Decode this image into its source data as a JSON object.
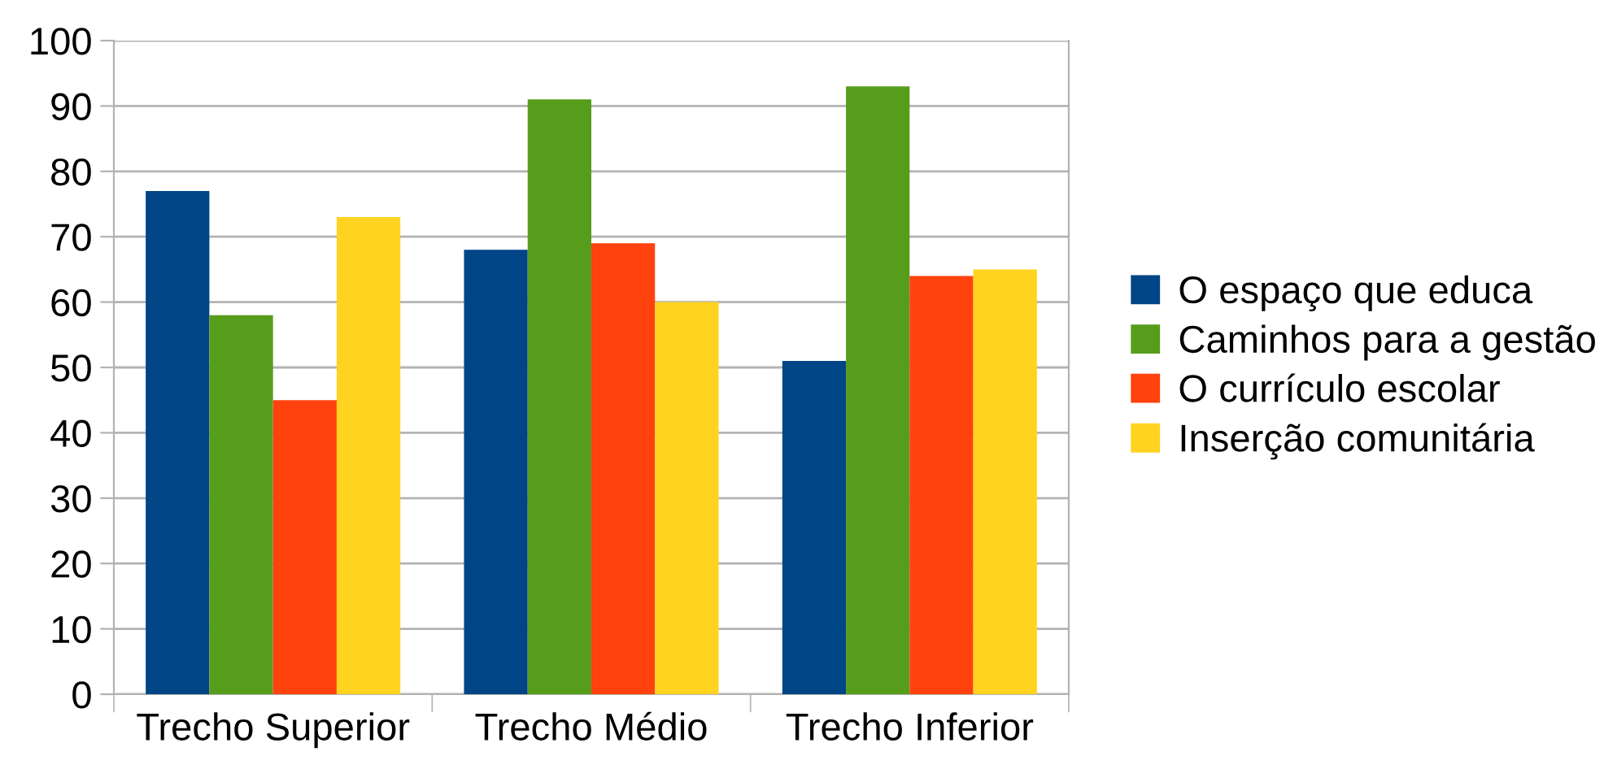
{
  "chart_data": {
    "type": "bar",
    "categories": [
      "Trecho Superior",
      "Trecho Médio",
      "Trecho Inferior"
    ],
    "series": [
      {
        "name": "O espaço que educa",
        "color": "#004586",
        "values": [
          77,
          68,
          51
        ]
      },
      {
        "name": "Caminhos para a gestão",
        "color": "#579d1c",
        "values": [
          58,
          91,
          93
        ]
      },
      {
        "name": "O currículo escolar",
        "color": "#ff420e",
        "values": [
          45,
          69,
          64
        ]
      },
      {
        "name": "Inserção comunitária",
        "color": "#ffd320",
        "values": [
          73,
          60,
          65
        ]
      }
    ],
    "ylim": [
      0,
      100
    ],
    "yticks": [
      0,
      10,
      20,
      30,
      40,
      50,
      60,
      70,
      80,
      90,
      100
    ],
    "grid": "y",
    "legend": "right"
  }
}
